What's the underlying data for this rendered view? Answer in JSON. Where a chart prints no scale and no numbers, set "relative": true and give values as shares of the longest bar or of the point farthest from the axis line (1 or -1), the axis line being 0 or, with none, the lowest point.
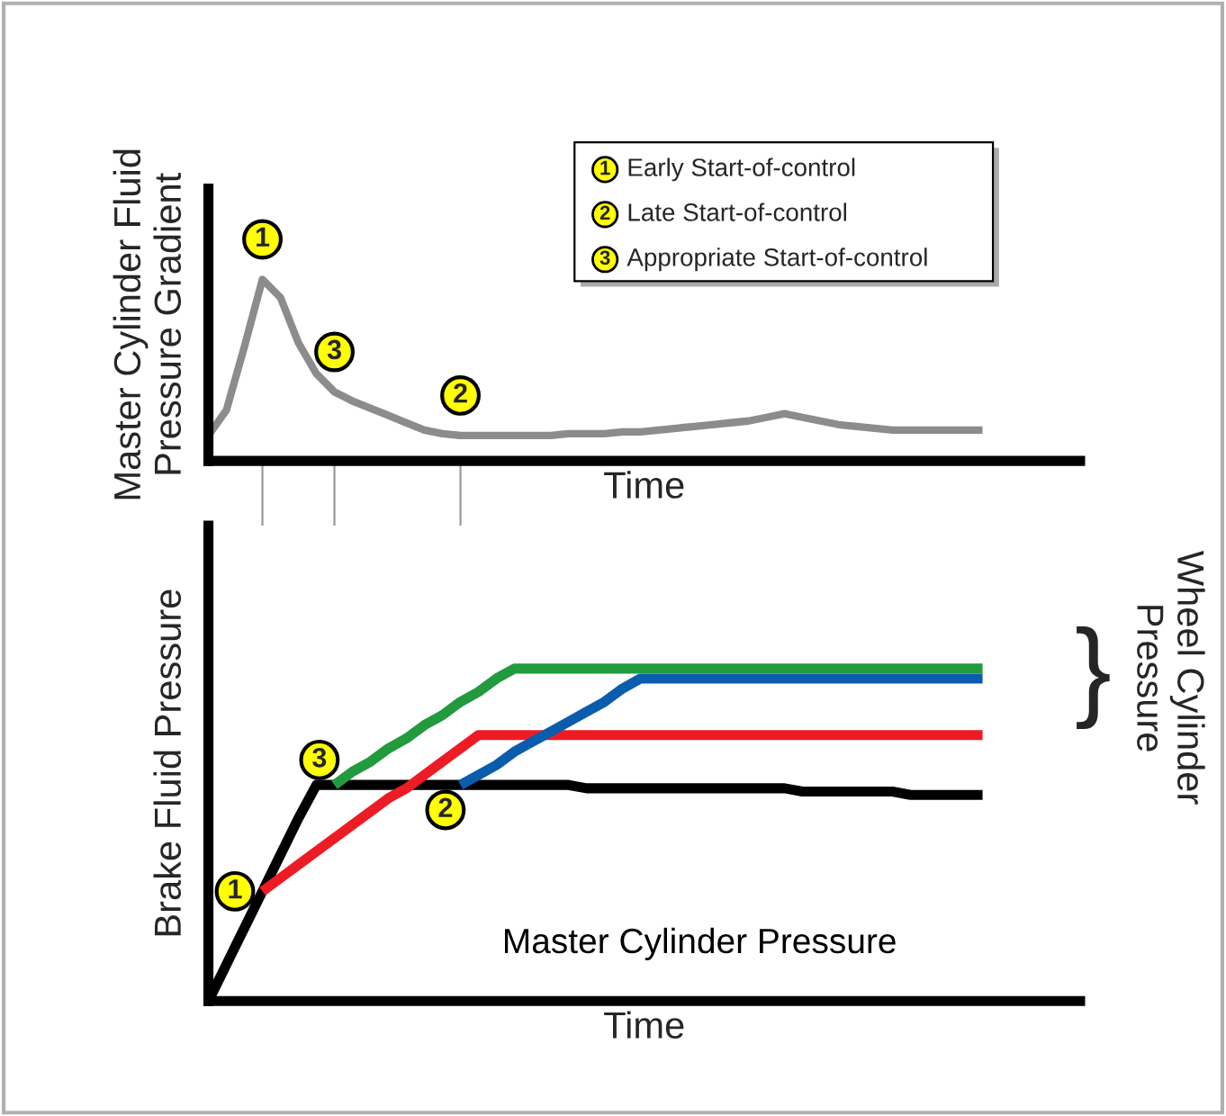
{
  "chart_data": [
    {
      "type": "line",
      "ylabel": "Master Cylinder Fluid\nPressure Gradient",
      "xlabel": "Time",
      "relative": true,
      "categories": [
        null,
        null,
        null,
        null,
        null,
        null,
        null,
        null,
        null,
        null,
        null,
        null,
        null,
        null,
        null,
        null,
        null,
        null,
        null,
        null,
        null,
        null,
        null,
        null,
        null,
        null,
        null,
        null,
        null,
        null,
        null,
        null,
        null,
        null,
        null,
        null,
        null,
        null,
        null,
        null,
        null,
        null,
        null,
        null
      ],
      "series": [
        {
          "color": "#8c8c8c",
          "values": [
            0.14,
            0.28,
            0.63,
            1,
            0.9,
            0.65,
            0.48,
            0.38,
            0.33,
            0.29,
            0.25,
            0.21,
            0.17,
            0.15,
            0.14,
            0.14,
            0.14,
            0.14,
            0.14,
            0.14,
            0.15,
            0.15,
            0.15,
            0.16,
            0.16,
            0.17,
            0.18,
            0.19,
            0.2,
            0.21,
            0.22,
            0.24,
            0.26,
            0.24,
            0.22,
            0.2,
            0.19,
            0.18,
            0.17,
            0.17,
            0.17,
            0.17,
            0.17,
            0.17
          ]
        }
      ],
      "annotations": [
        "1",
        "2",
        "3",
        "1",
        "Early Start-of-control",
        "2",
        "Late Start-of-control",
        "3",
        "Appropriate Start-of-control"
      ]
    },
    {
      "type": "line",
      "ylabel": "Brake Fluid Pressure",
      "xlabel": "Time",
      "y2label": "Wheel Cylinder\nPressure",
      "relative": true,
      "categories": [
        null,
        null,
        null,
        null,
        null,
        null,
        null,
        null,
        null,
        null,
        null,
        null,
        null,
        null,
        null,
        null,
        null,
        null,
        null,
        null,
        null,
        null,
        null,
        null,
        null,
        null,
        null,
        null,
        null,
        null,
        null,
        null,
        null,
        null,
        null,
        null,
        null,
        null,
        null,
        null,
        null,
        null,
        null,
        null
      ],
      "series": [
        {
          "name": "Master Cylinder Pressure",
          "color": "#000000",
          "values": [
            0,
            0.11,
            0.22,
            0.33,
            0.44,
            0.55,
            0.65,
            0.65,
            0.65,
            0.65,
            0.65,
            0.65,
            0.65,
            0.65,
            0.65,
            0.65,
            0.65,
            0.65,
            0.65,
            0.65,
            0.65,
            0.64,
            0.64,
            0.64,
            0.64,
            0.64,
            0.64,
            0.64,
            0.64,
            0.64,
            0.64,
            0.64,
            0.64,
            0.63,
            0.63,
            0.63,
            0.63,
            0.63,
            0.63,
            0.62,
            0.62,
            0.62,
            0.62,
            0.62
          ]
        },
        {
          "color": "#ed1c24",
          "values": [
            null,
            null,
            null,
            0.33,
            0.37,
            0.41,
            0.45,
            0.49,
            0.53,
            0.57,
            0.61,
            0.64,
            0.68,
            0.72,
            0.76,
            0.8,
            0.8,
            0.8,
            0.8,
            0.8,
            0.8,
            0.8,
            0.8,
            0.8,
            0.8,
            0.8,
            0.8,
            0.8,
            0.8,
            0.8,
            0.8,
            0.8,
            0.8,
            0.8,
            0.8,
            0.8,
            0.8,
            0.8,
            0.8,
            0.8,
            0.8,
            0.8,
            0.8,
            0.8
          ]
        },
        {
          "color": "#0a5cad",
          "values": [
            null,
            null,
            null,
            null,
            null,
            null,
            null,
            null,
            null,
            null,
            null,
            null,
            null,
            null,
            0.65,
            0.68,
            0.71,
            0.75,
            0.78,
            0.81,
            0.84,
            0.87,
            0.9,
            0.94,
            0.97,
            0.97,
            0.97,
            0.97,
            0.97,
            0.97,
            0.97,
            0.97,
            0.97,
            0.97,
            0.97,
            0.97,
            0.97,
            0.97,
            0.97,
            0.97,
            0.97,
            0.97,
            0.97,
            0.97
          ]
        },
        {
          "color": "#229a3e",
          "values": [
            null,
            null,
            null,
            null,
            null,
            null,
            null,
            0.65,
            0.69,
            0.72,
            0.76,
            0.79,
            0.83,
            0.86,
            0.9,
            0.93,
            0.97,
            1,
            1,
            1,
            1,
            1,
            1,
            1,
            1,
            1,
            1,
            1,
            1,
            1,
            1,
            1,
            1,
            1,
            1,
            1,
            1,
            1,
            1,
            1,
            1,
            1,
            1,
            1
          ]
        }
      ],
      "annotations": [
        "1",
        "2",
        "3",
        "}"
      ]
    }
  ]
}
